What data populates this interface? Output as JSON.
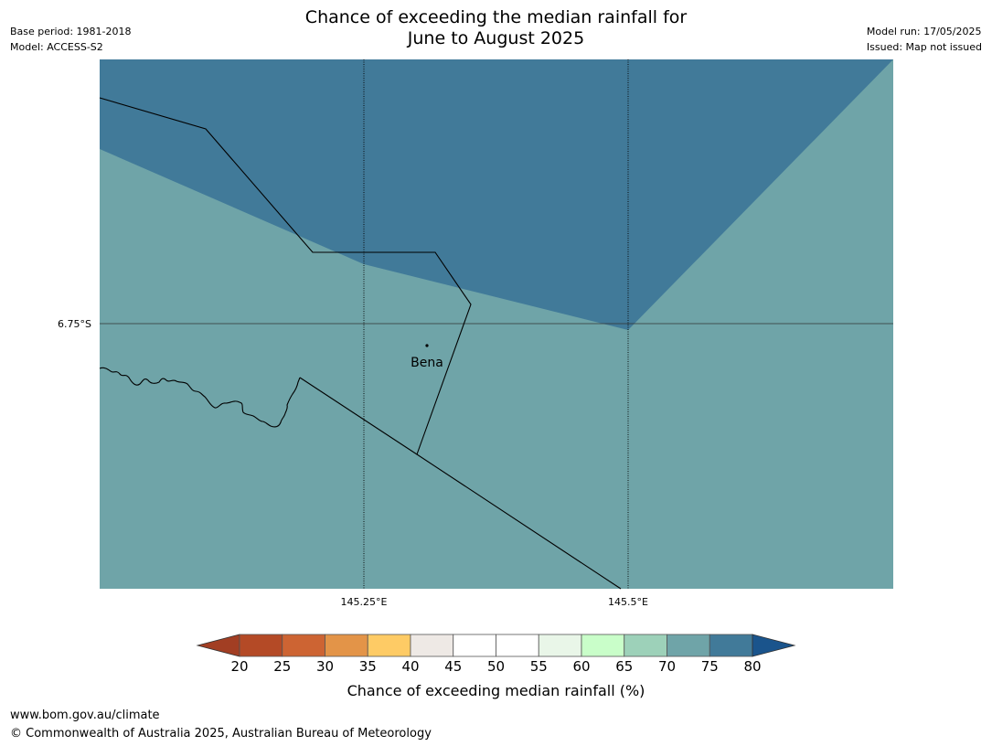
{
  "header": {
    "base_period": "Base period: 1981-2018",
    "model": "Model: ACCESS-S2",
    "title_line1": "Chance of exceeding the median rainfall for",
    "title_line2": "June to August 2025",
    "model_run": "Model run: 17/05/2025",
    "issued": "Issued: Map not issued"
  },
  "map": {
    "latitude_labels": [
      "6.75°S"
    ],
    "longitude_labels": [
      "145.25°E",
      "145.5°E"
    ],
    "place": "Bena",
    "colors": {
      "band_70_75": "#6fa4a8",
      "band_75_80": "#417a99",
      "boundary": "#000000"
    }
  },
  "colorbar": {
    "title": "Chance of exceeding median rainfall (%)",
    "ticks": [
      "20",
      "25",
      "30",
      "35",
      "40",
      "45",
      "50",
      "55",
      "60",
      "65",
      "70",
      "75",
      "80"
    ],
    "colors": [
      "#a23e23",
      "#b44a26",
      "#cd6433",
      "#e39448",
      "#fecb65",
      "#eee9e5",
      "#ffffff",
      "#ffffff",
      "#e9f6e8",
      "#c9fec9",
      "#9dd1b9",
      "#6fa4a8",
      "#417a99",
      "#1a548c"
    ]
  },
  "footer": {
    "url": "www.bom.gov.au/climate",
    "copyright": "© Commonwealth of Australia 2025, Australian Bureau of Meteorology"
  }
}
